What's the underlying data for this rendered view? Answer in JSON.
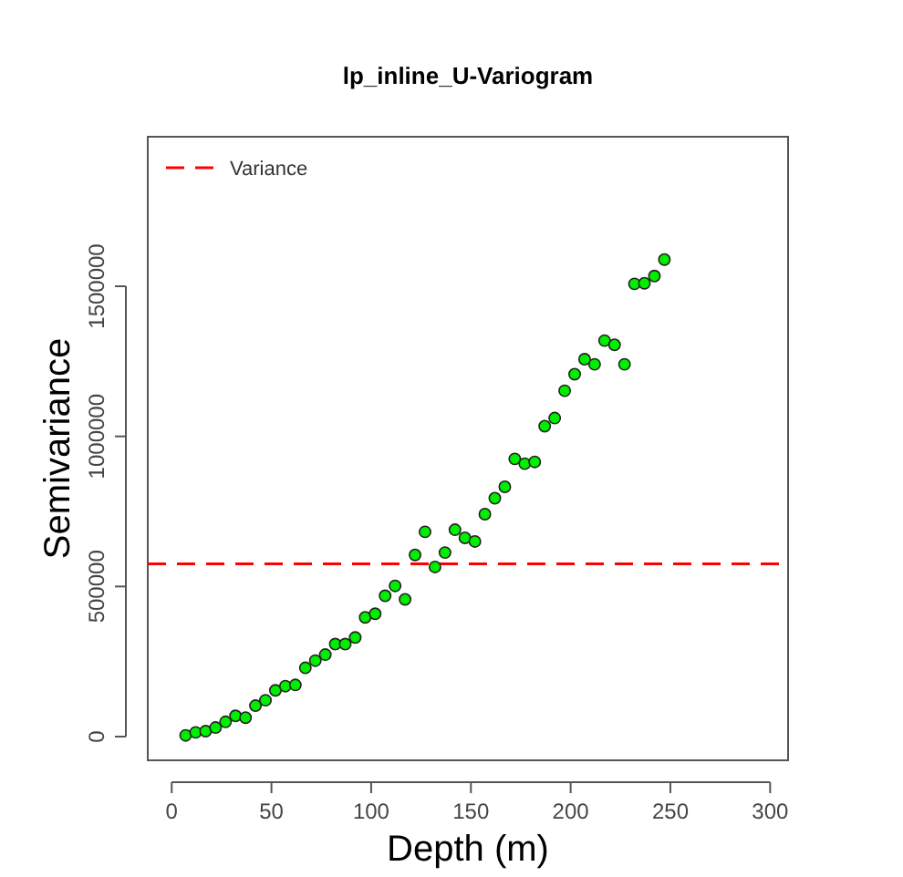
{
  "chart_data": {
    "type": "scatter",
    "title": "lp_inline_U-Variogram",
    "xlabel": "Depth (m)",
    "ylabel": "Semivariance",
    "x": [
      7,
      12,
      17,
      22,
      27,
      32,
      37,
      42,
      47,
      52,
      57,
      62,
      67,
      72,
      77,
      82,
      87,
      92,
      97,
      102,
      107,
      112,
      117,
      122,
      127,
      132,
      137,
      142,
      147,
      152,
      157,
      162,
      167,
      172,
      177,
      182,
      187,
      192,
      197,
      202,
      207,
      212,
      217,
      222,
      227,
      232,
      237,
      242,
      247
    ],
    "series": [
      {
        "color": "#00ee00",
        "values": [
          4000,
          14000,
          18000,
          30000,
          49000,
          69000,
          63000,
          103000,
          121000,
          154000,
          168000,
          172000,
          229000,
          253000,
          273000,
          308000,
          308000,
          330000,
          397000,
          409000,
          469000,
          502000,
          457000,
          605000,
          682000,
          565000,
          613000,
          689000,
          662000,
          650000,
          741000,
          794000,
          832000,
          925000,
          909000,
          915000,
          1034000,
          1061000,
          1152000,
          1207000,
          1257000,
          1240000,
          1319000,
          1305000,
          1240000,
          1508000,
          1510000,
          1534000,
          1589000
        ]
      }
    ],
    "xlim": [
      -12,
      309
    ],
    "ylim": [
      -79000,
      1998000
    ],
    "xticks": [
      0,
      50,
      100,
      150,
      200,
      250,
      300
    ],
    "yticks": [
      0,
      500000,
      1000000,
      1500000
    ],
    "marker": "circle",
    "grid": false,
    "legend": "top left",
    "ref_lines": [
      {
        "axis": "y",
        "value": 575000,
        "label": "Variance",
        "color": "#ff0000",
        "line_style": "dashed"
      }
    ]
  }
}
